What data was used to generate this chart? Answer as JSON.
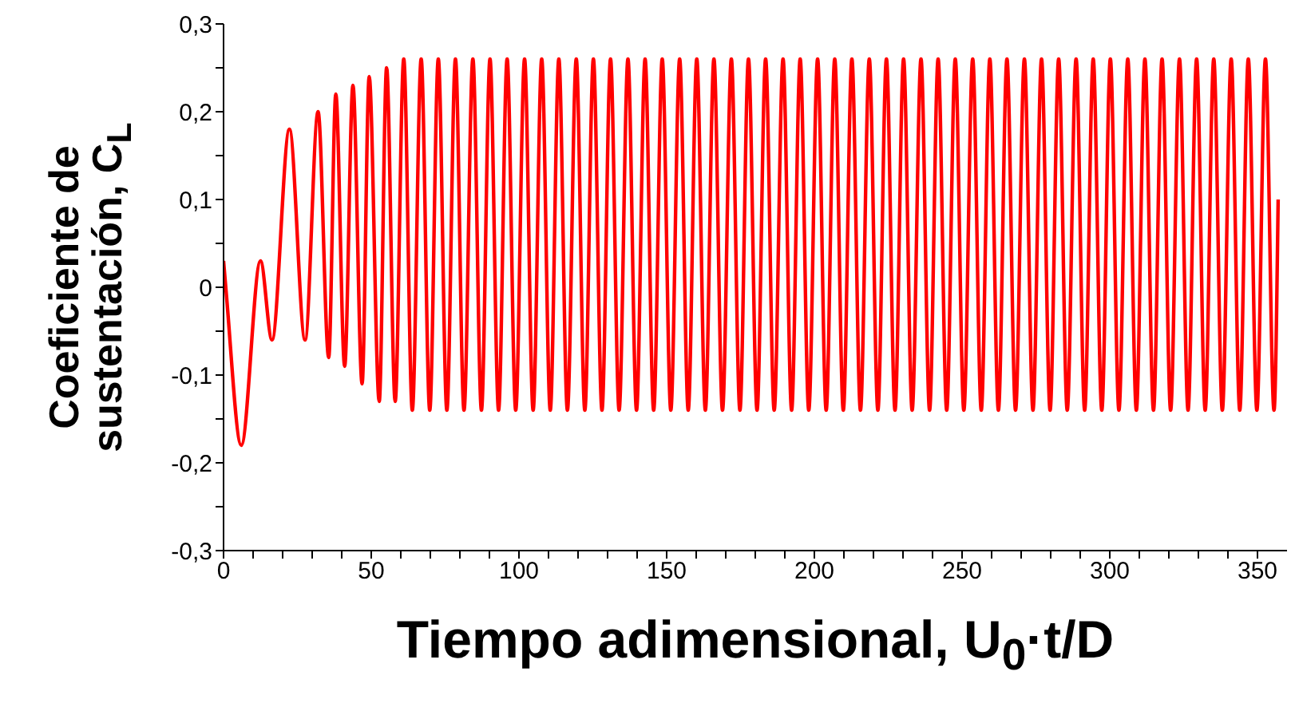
{
  "chart_data": {
    "type": "line",
    "xlabel": "Tiempo adimensional, U$_{0}$·t/D",
    "ylabel": "Coeficiente de sustentación, C$_{L}$",
    "xlim": [
      0,
      360
    ],
    "ylim": [
      -0.3,
      0.3
    ],
    "xticks": [
      0,
      {
        "value": 10,
        "label": null
      },
      {
        "value": 20,
        "label": null
      },
      {
        "value": 30,
        "label": null
      },
      {
        "value": 40,
        "label": null
      },
      50,
      {
        "value": 60,
        "label": null
      },
      {
        "value": 70,
        "label": null
      },
      {
        "value": 80,
        "label": null
      },
      {
        "value": 90,
        "label": null
      },
      100,
      {
        "value": 110,
        "label": null
      },
      {
        "value": 120,
        "label": null
      },
      {
        "value": 130,
        "label": null
      },
      {
        "value": 140,
        "label": null
      },
      150,
      {
        "value": 160,
        "label": null
      },
      {
        "value": 170,
        "label": null
      },
      {
        "value": 180,
        "label": null
      },
      {
        "value": 190,
        "label": null
      },
      200,
      {
        "value": 210,
        "label": null
      },
      {
        "value": 220,
        "label": null
      },
      {
        "value": 230,
        "label": null
      },
      {
        "value": 240,
        "label": null
      },
      250,
      {
        "value": 260,
        "label": null
      },
      {
        "value": 270,
        "label": null
      },
      {
        "value": 280,
        "label": null
      },
      {
        "value": 290,
        "label": null
      },
      300,
      {
        "value": 310,
        "label": null
      },
      {
        "value": 320,
        "label": null
      },
      {
        "value": 330,
        "label": null
      },
      {
        "value": 340,
        "label": null
      },
      350
    ],
    "yticks": [
      {
        "value": -0.3,
        "label": "-0,3"
      },
      {
        "value": -0.25,
        "label": null
      },
      {
        "value": -0.2,
        "label": "-0,2"
      },
      {
        "value": -0.15,
        "label": null
      },
      {
        "value": -0.1,
        "label": "-0,1"
      },
      {
        "value": -0.05,
        "label": null
      },
      0,
      {
        "value": 0.05,
        "label": null
      },
      {
        "value": 0.1,
        "label": "0,1"
      },
      {
        "value": 0.15,
        "label": null
      },
      {
        "value": 0.2,
        "label": "0,2"
      },
      {
        "value": 0.25,
        "label": null
      },
      {
        "value": 0.3,
        "label": "0,3"
      }
    ],
    "x": [
      0,
      1,
      6,
      12.5,
      16.4,
      22.3,
      27.6,
      32,
      35.6,
      38,
      41,
      43.8,
      46.9,
      49.3,
      52.7,
      55.2,
      58.1,
      61.0,
      63.9,
      66.9,
      69.8,
      72.7,
      75.6,
      78.5,
      81.4,
      84.4,
      87.3,
      90.2,
      93.1,
      96.0,
      98.9,
      101.9,
      104.8,
      107.7,
      110.6,
      113.5,
      116.4,
      119.4,
      122.3,
      125.2,
      128.1,
      131.0,
      133.9,
      136.9,
      139.8,
      142.7,
      145.6,
      148.5,
      151.4,
      154.4,
      157.3,
      160.2,
      163.1,
      166.0,
      168.9,
      171.9,
      174.8,
      177.7,
      180.6,
      183.5,
      186.4,
      189.4,
      192.3,
      195.2,
      198.1,
      201.1,
      204.0,
      206.9,
      209.8,
      212.7,
      215.6,
      218.6,
      221.5,
      224.4,
      227.3,
      230.2,
      233.1,
      236.1,
      239.0,
      241.9,
      244.8,
      247.7,
      250.6,
      253.6,
      256.5,
      259.4,
      262.3,
      265.2,
      268.1,
      271.1,
      274.0,
      276.9,
      279.8,
      282.7,
      285.6,
      288.6,
      291.5,
      294.4,
      297.3,
      300.2,
      303.1,
      306.1,
      309.0,
      311.9,
      314.8,
      317.7,
      320.6,
      323.6,
      326.5,
      329.4,
      332.3,
      335.2,
      338.1,
      341.1,
      344.0,
      346.9,
      349.8,
      352.7,
      355.6,
      357
    ],
    "series": [
      {
        "color": "#ff0000",
        "values": [
          0.03,
          -0.01,
          -0.18,
          0.03,
          -0.06,
          0.18,
          -0.06,
          0.2,
          -0.08,
          0.22,
          -0.09,
          0.23,
          -0.11,
          0.24,
          -0.13,
          0.25,
          -0.13,
          0.26,
          -0.14,
          0.26,
          -0.14,
          0.26,
          -0.14,
          0.26,
          -0.14,
          0.26,
          -0.14,
          0.26,
          -0.14,
          0.26,
          -0.14,
          0.26,
          -0.14,
          0.26,
          -0.14,
          0.26,
          -0.14,
          0.26,
          -0.14,
          0.26,
          -0.14,
          0.26,
          -0.14,
          0.26,
          -0.14,
          0.26,
          -0.14,
          0.26,
          -0.14,
          0.26,
          -0.14,
          0.26,
          -0.14,
          0.26,
          -0.14,
          0.26,
          -0.14,
          0.26,
          -0.14,
          0.26,
          -0.14,
          0.26,
          -0.14,
          0.26,
          -0.14,
          0.26,
          -0.14,
          0.26,
          -0.14,
          0.26,
          -0.14,
          0.26,
          -0.14,
          0.26,
          -0.14,
          0.26,
          -0.14,
          0.26,
          -0.14,
          0.26,
          -0.14,
          0.26,
          -0.14,
          0.26,
          -0.14,
          0.26,
          -0.14,
          0.26,
          -0.14,
          0.26,
          -0.14,
          0.26,
          -0.14,
          0.26,
          -0.14,
          0.26,
          -0.14,
          0.26,
          -0.14,
          0.26,
          -0.14,
          0.26,
          -0.14,
          0.26,
          -0.14,
          0.26,
          -0.14,
          0.26,
          -0.14,
          0.26,
          -0.14,
          0.26,
          -0.14,
          0.26,
          -0.14,
          0.26,
          -0.14,
          0.26,
          -0.14,
          0.1
        ]
      }
    ]
  }
}
